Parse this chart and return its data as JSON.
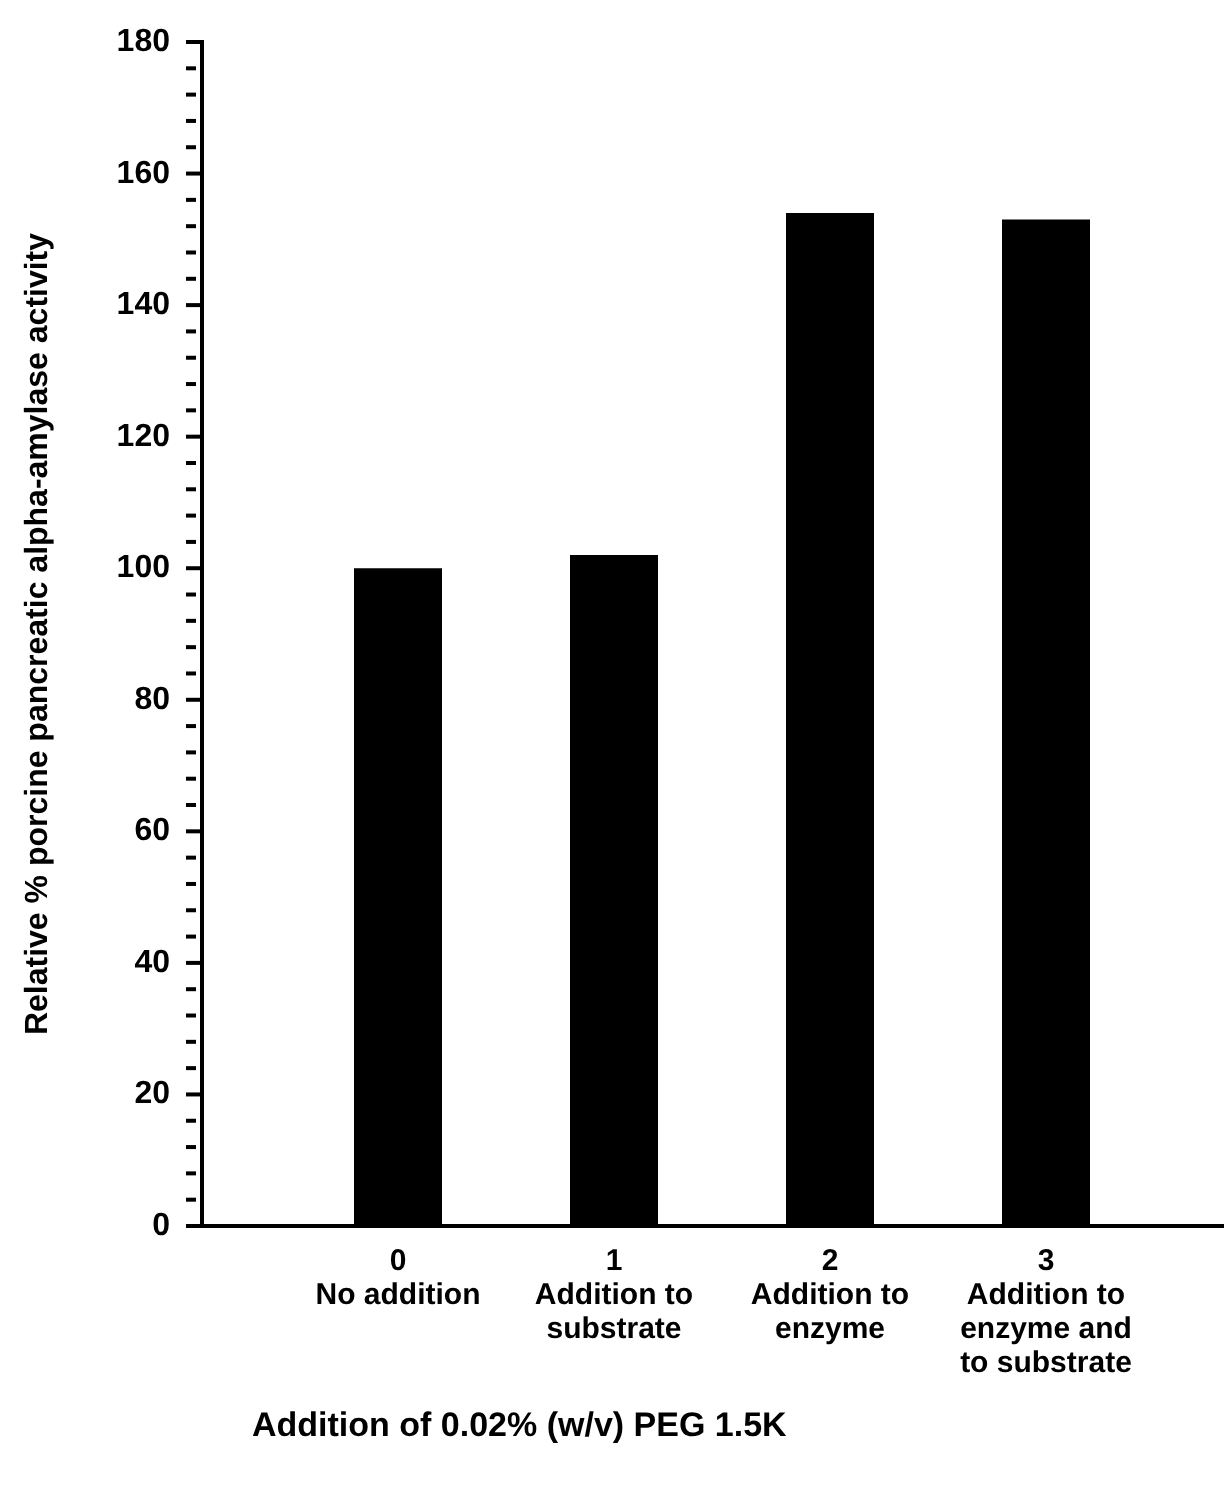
{
  "chart_data": {
    "type": "bar",
    "xlabel": "Addition of 0.02% (w/v) PEG 1.5K",
    "ylabel": "Relative % porcine pancreatic alpha-amylase activity",
    "categories": [
      "0\nNo addition",
      "1\nAddition to\nsubstrate",
      "2\nAddition to\nenzyme",
      "3\nAddition to\nenzyme and\nto substrate"
    ],
    "values": [
      100,
      102,
      154,
      153
    ],
    "color": "#000000",
    "ylim": [
      0,
      180
    ],
    "yticks": [
      0,
      {
        "value": 4,
        "label": null
      },
      {
        "value": 8,
        "label": null
      },
      {
        "value": 12,
        "label": null
      },
      {
        "value": 16,
        "label": null
      },
      20,
      {
        "value": 24,
        "label": null
      },
      {
        "value": 28,
        "label": null
      },
      {
        "value": 32,
        "label": null
      },
      {
        "value": 36,
        "label": null
      },
      40,
      {
        "value": 44,
        "label": null
      },
      {
        "value": 48,
        "label": null
      },
      {
        "value": 52,
        "label": null
      },
      {
        "value": 56,
        "label": null
      },
      60,
      {
        "value": 64,
        "label": null
      },
      {
        "value": 68,
        "label": null
      },
      {
        "value": 72,
        "label": null
      },
      {
        "value": 76,
        "label": null
      },
      80,
      {
        "value": 84,
        "label": null
      },
      {
        "value": 88,
        "label": null
      },
      {
        "value": 92,
        "label": null
      },
      {
        "value": 96,
        "label": null
      },
      100,
      {
        "value": 104,
        "label": null
      },
      {
        "value": 108,
        "label": null
      },
      {
        "value": 112,
        "label": null
      },
      {
        "value": 116,
        "label": null
      },
      120,
      {
        "value": 124,
        "label": null
      },
      {
        "value": 128,
        "label": null
      },
      {
        "value": 132,
        "label": null
      },
      {
        "value": 136,
        "label": null
      },
      140,
      {
        "value": 144,
        "label": null
      },
      {
        "value": 148,
        "label": null
      },
      {
        "value": 152,
        "label": null
      },
      {
        "value": 156,
        "label": null
      },
      160,
      {
        "value": 164,
        "label": null
      },
      {
        "value": 168,
        "label": null
      },
      {
        "value": 172,
        "label": null
      },
      {
        "value": 176,
        "label": null
      },
      180
    ],
    "grid": false,
    "legend": false
  }
}
